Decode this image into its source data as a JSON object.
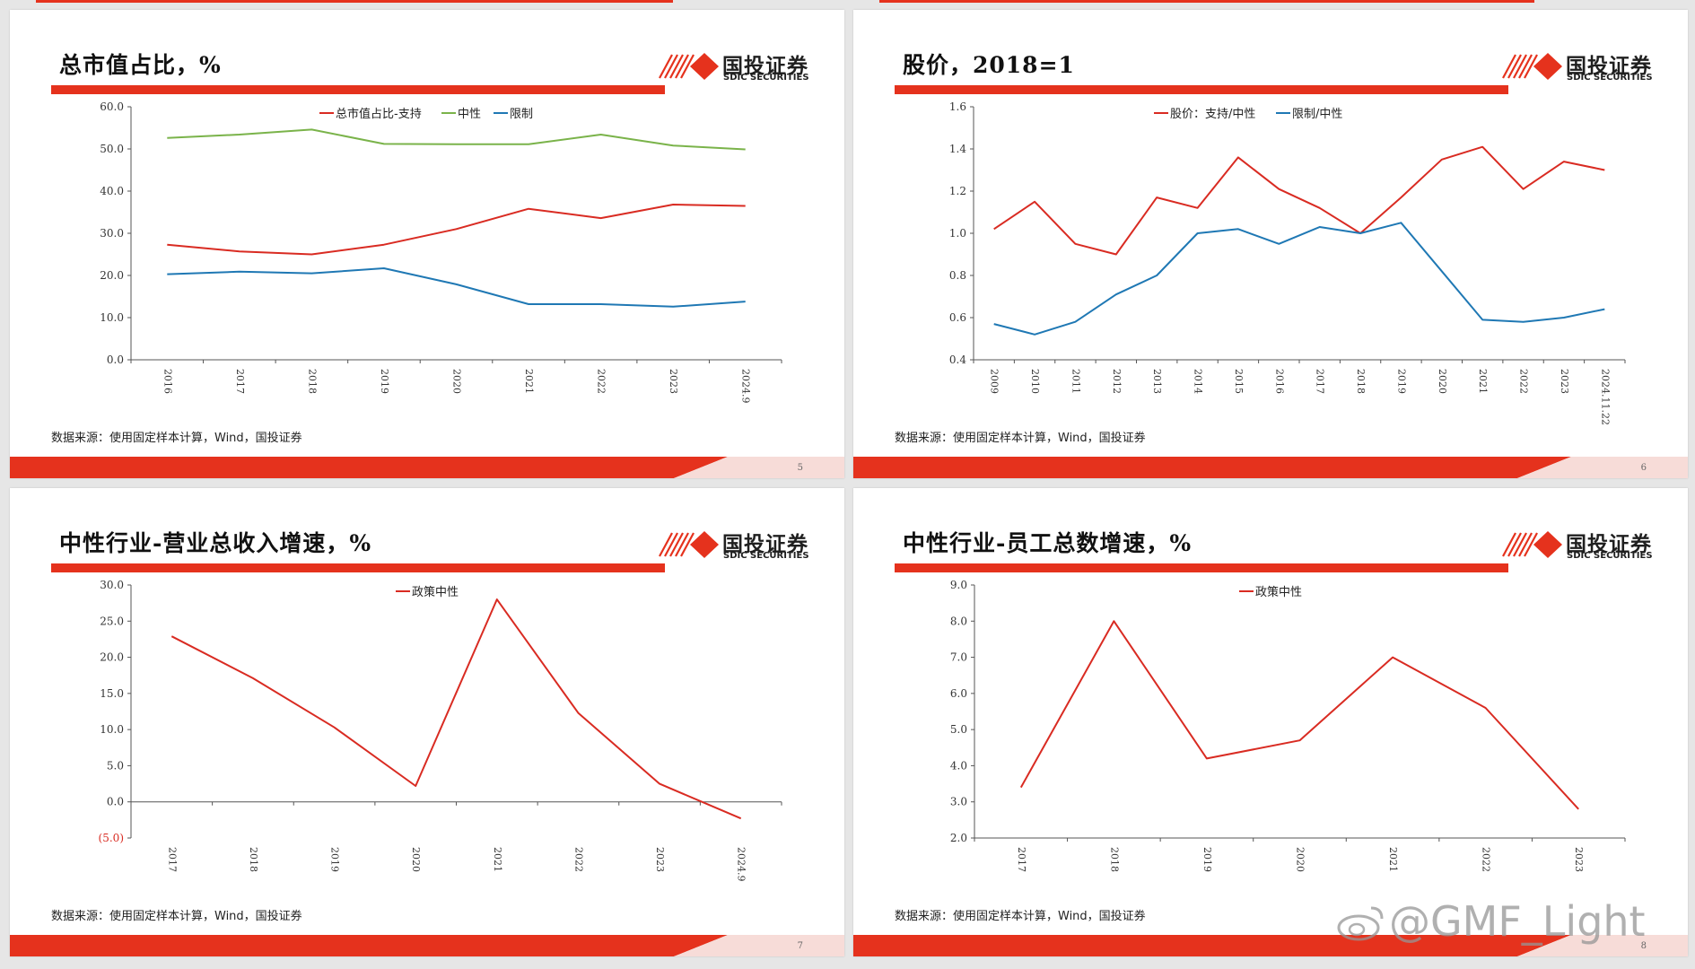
{
  "watermark": "@GMF_Light",
  "colors": {
    "red": "#d92b22",
    "green": "#7ab34a",
    "blue": "#1f78b4",
    "accent": "#e5321d"
  },
  "logo": {
    "cn": "国投证券",
    "en": "SDIC SECURITIES"
  },
  "slides": [
    {
      "title": "总市值占比，%",
      "source": "数据来源：使用固定样本计算，Wind，国投证券",
      "page": "5"
    },
    {
      "title": "股价，2018=1",
      "source": "数据来源：使用固定样本计算，Wind，国投证券",
      "page": "6"
    },
    {
      "title": "中性行业-营业总收入增速，%",
      "source": "数据来源：使用固定样本计算，Wind，国投证券",
      "page": "7"
    },
    {
      "title": "中性行业-员工总数增速，%",
      "source": "数据来源：使用固定样本计算，Wind，国投证券",
      "page": "8"
    }
  ],
  "chart_data": [
    {
      "type": "line",
      "categories": [
        "2016",
        "2017",
        "2018",
        "2019",
        "2020",
        "2021",
        "2022",
        "2023",
        "2024.9"
      ],
      "ylim": [
        0,
        60
      ],
      "yticks": [
        "0.0",
        "10.0",
        "20.0",
        "30.0",
        "40.0",
        "50.0",
        "60.0"
      ],
      "legend": "top",
      "series": [
        {
          "name": "总市值占比-支持",
          "color": "#d92b22",
          "values": [
            27.3,
            25.7,
            25.0,
            27.3,
            31.0,
            35.8,
            33.6,
            36.8,
            36.5
          ]
        },
        {
          "name": "中性",
          "color": "#7ab34a",
          "values": [
            52.6,
            53.4,
            54.6,
            51.2,
            51.1,
            51.1,
            53.4,
            50.8,
            49.9
          ]
        },
        {
          "name": "限制",
          "color": "#1f78b4",
          "values": [
            20.3,
            20.9,
            20.5,
            21.7,
            17.9,
            13.2,
            13.2,
            12.6,
            13.8
          ]
        }
      ]
    },
    {
      "type": "line",
      "categories": [
        "2009",
        "2010",
        "2011",
        "2012",
        "2013",
        "2014",
        "2015",
        "2016",
        "2017",
        "2018",
        "2019",
        "2020",
        "2021",
        "2022",
        "2023",
        "2024.11.22"
      ],
      "ylim": [
        0.4,
        1.6
      ],
      "yticks": [
        "0.4",
        "0.6",
        "0.8",
        "1.0",
        "1.2",
        "1.4",
        "1.6"
      ],
      "legend": "top",
      "series": [
        {
          "name": "股价：支持/中性",
          "color": "#d92b22",
          "values": [
            1.02,
            1.15,
            0.95,
            0.9,
            1.17,
            1.12,
            1.36,
            1.21,
            1.12,
            1.0,
            1.17,
            1.35,
            1.41,
            1.21,
            1.34,
            1.3
          ]
        },
        {
          "name": "限制/中性",
          "color": "#1f78b4",
          "values": [
            0.57,
            0.52,
            0.58,
            0.71,
            0.8,
            1.0,
            1.02,
            0.95,
            1.03,
            1.0,
            1.05,
            0.82,
            0.59,
            0.58,
            0.6,
            0.64
          ]
        }
      ]
    },
    {
      "type": "line",
      "categories": [
        "2017",
        "2018",
        "2019",
        "2020",
        "2021",
        "2022",
        "2023",
        "2024.9"
      ],
      "ylim": [
        -5,
        30
      ],
      "yticks": [
        "(5.0)",
        "0.0",
        "5.0",
        "10.0",
        "15.0",
        "20.0",
        "25.0",
        "30.0"
      ],
      "legend": "top",
      "series": [
        {
          "name": "政策中性",
          "color": "#d92b22",
          "values": [
            22.9,
            17.1,
            10.3,
            2.2,
            28.0,
            12.3,
            2.5,
            -2.3
          ]
        }
      ]
    },
    {
      "type": "line",
      "categories": [
        "2017",
        "2018",
        "2019",
        "2020",
        "2021",
        "2022",
        "2023"
      ],
      "ylim": [
        2,
        9
      ],
      "yticks": [
        "2.0",
        "3.0",
        "4.0",
        "5.0",
        "6.0",
        "7.0",
        "8.0",
        "9.0"
      ],
      "legend": "top",
      "series": [
        {
          "name": "政策中性",
          "color": "#d92b22",
          "values": [
            3.4,
            8.0,
            4.2,
            4.7,
            7.0,
            5.6,
            2.8
          ]
        }
      ]
    }
  ]
}
